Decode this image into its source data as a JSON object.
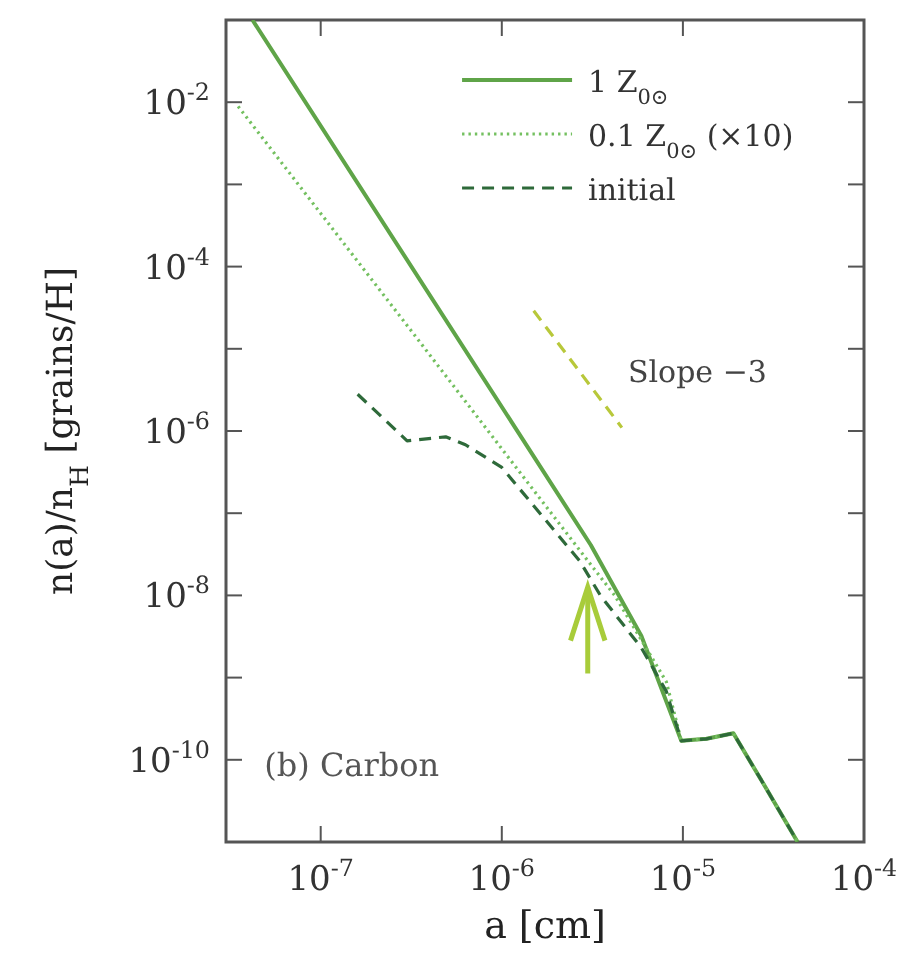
{
  "chart_data": {
    "type": "line",
    "xlabel": "a [cm]",
    "ylabel": "n(a)/n$_{H}$ [grains/H]",
    "log": "xy",
    "legend": "top right",
    "xlim": [
      3e-08,
      0.0001
    ],
    "ylim": [
      1e-11,
      0.1
    ],
    "xticks": [
      {
        "value": 1e-07,
        "label": "10$^{-7}$"
      },
      {
        "value": 1e-06,
        "label": "10$^{-6}$"
      },
      {
        "value": 1e-05,
        "label": "10$^{-5}$"
      },
      {
        "value": 0.0001,
        "label": "10$^{-4}$"
      }
    ],
    "yticks": [
      {
        "value": 1e-10,
        "label": "10$^{-10}$"
      },
      {
        "value": 1e-09,
        "label": null
      },
      {
        "value": 1e-08,
        "label": "10$^{-8}$"
      },
      {
        "value": 1e-07,
        "label": null
      },
      {
        "value": 1e-06,
        "label": "10$^{-6}$"
      },
      {
        "value": 1e-05,
        "label": null
      },
      {
        "value": 0.0001,
        "label": "10$^{-4}$"
      },
      {
        "value": 0.001,
        "label": null
      },
      {
        "value": 0.01,
        "label": "10$^{-2}$"
      }
    ],
    "series": [
      {
        "name": "1 Z$_{0⊙}$",
        "color": "#5fa448",
        "line_style": "solid",
        "x": [
          4.2e-08,
          3.1e-06,
          5.9e-06,
          9.8e-06,
          1.35e-05,
          1.9e-05,
          2.8e-05,
          4.3e-05
        ],
        "values": [
          0.1,
          4.1e-08,
          3.2e-09,
          1.7e-10,
          1.8e-10,
          2.1e-10,
          5e-11,
          1e-11
        ]
      },
      {
        "name": "0.1 Z$_{0⊙}$ (×10)",
        "color": "#74c060",
        "line_style": "dotted",
        "x": [
          3.5e-08,
          3.2e-07,
          1.2e-06,
          3e-06,
          4.2e-06,
          8.1e-06,
          9.8e-06,
          1.35e-05,
          1.9e-05,
          2.8e-05,
          4.3e-05
        ],
        "values": [
          0.0089,
          1.6e-05,
          3.6e-07,
          2.6e-08,
          1e-08,
          8.9e-10,
          1.7e-10,
          1.8e-10,
          2.1e-10,
          5e-11,
          1e-11
        ]
      },
      {
        "name": "initial",
        "color": "#2e6a3a",
        "line_style": "dashed",
        "x": [
          1.6e-07,
          3e-07,
          4.9e-07,
          6.3e-07,
          1e-06,
          2.7e-06,
          3.5e-06,
          5.9e-06,
          8.1e-06,
          9.8e-06,
          1.35e-05,
          1.9e-05,
          2.8e-05,
          4.3e-05
        ],
        "values": [
          2.8e-06,
          7.6e-07,
          8.5e-07,
          6.8e-07,
          3.6e-07,
          2.6e-08,
          1e-08,
          2.3e-09,
          6.8e-10,
          1.7e-10,
          1.8e-10,
          2.1e-10,
          5e-11,
          1e-11
        ]
      },
      {
        "color": "#b8c83a",
        "line_style": "dashed",
        "x": [
          1.5e-06,
          4.6e-06
        ],
        "values": [
          2.9e-05,
          1.1e-06
        ]
      }
    ],
    "annotations": [
      "Slope −3",
      "(b) Carbon"
    ]
  }
}
